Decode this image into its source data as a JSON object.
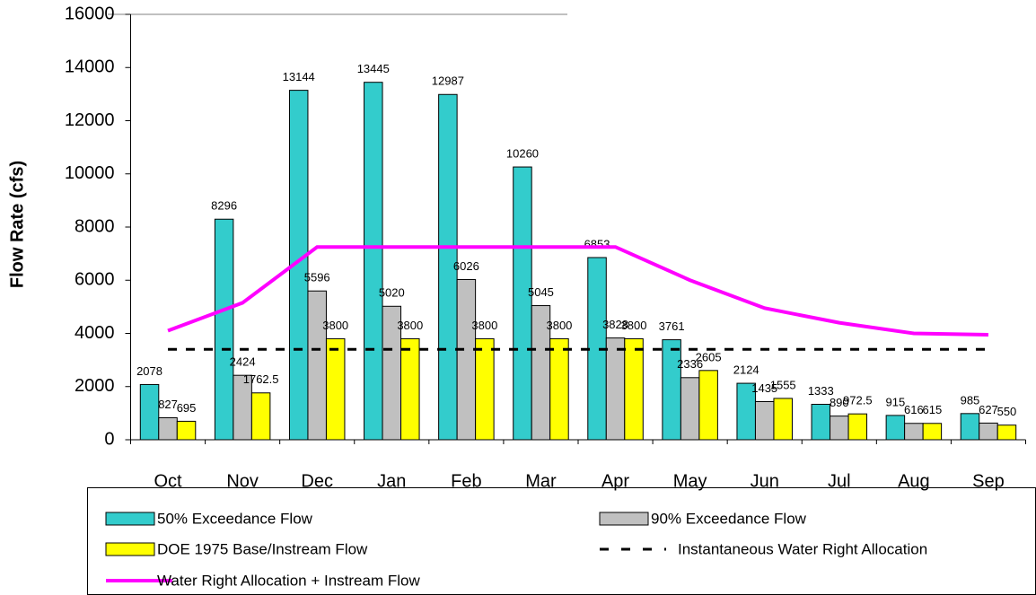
{
  "chart_data": {
    "type": "bar",
    "y_label": "Flow Rate (cfs)",
    "categories": [
      "Oct",
      "Nov",
      "Dec",
      "Jan",
      "Feb",
      "Mar",
      "Apr",
      "May",
      "Jun",
      "Jul",
      "Aug",
      "Sep"
    ],
    "ylim": [
      0,
      16000
    ],
    "yticks": [
      0,
      2000,
      4000,
      6000,
      8000,
      10000,
      12000,
      14000,
      16000
    ],
    "series": [
      {
        "name": "50% Exceedance Flow",
        "kind": "bar",
        "color": "#33cccc",
        "values": [
          2078,
          8296,
          13144,
          13445,
          12987,
          10260,
          6853,
          3761,
          2124,
          1333,
          915,
          985
        ]
      },
      {
        "name": "90% Exceedance Flow",
        "kind": "bar",
        "color": "#c0c0c0",
        "values": [
          827,
          2424,
          5596,
          5020,
          6026,
          5045,
          3828,
          2336,
          1435,
          890,
          616,
          627
        ]
      },
      {
        "name": "DOE 1975 Base/Instream Flow",
        "kind": "bar",
        "color": "#ffff00",
        "values": [
          695,
          1762.5,
          3800,
          3800,
          3800,
          3800,
          3800,
          2605,
          1555,
          972.5,
          615,
          550
        ]
      },
      {
        "name": "Instantaneous Water Right Allocation",
        "kind": "line",
        "dashed": true,
        "color": "#000000",
        "values": [
          3400,
          3400,
          3400,
          3400,
          3400,
          3400,
          3400,
          3400,
          3400,
          3400,
          3400,
          3400
        ]
      },
      {
        "name": "Water Right Allocation + Instream Flow",
        "kind": "line",
        "dashed": false,
        "color": "#ff00ff",
        "values": [
          4100,
          5150,
          7250,
          7250,
          7250,
          7250,
          7250,
          6000,
          4950,
          4400,
          4000,
          3950
        ]
      }
    ]
  }
}
